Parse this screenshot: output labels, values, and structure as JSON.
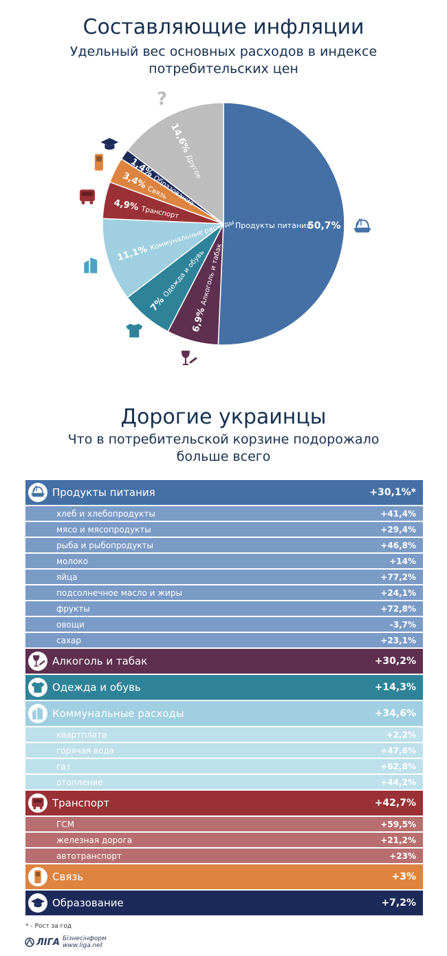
{
  "header": {
    "title": "Составляющие инфляции",
    "subtitle_line1": "Удельный вес основных расходов в индексе",
    "subtitle_line2": "потребительских цен"
  },
  "chart_data": {
    "type": "pie",
    "title": "Составляющие инфляции",
    "unit": "%",
    "slices": [
      {
        "label": "Продукты питания",
        "value": 50.7,
        "value_label": "50,7%",
        "color": "#4470a6"
      },
      {
        "label": "Алкоголь и табак",
        "value": 6.9,
        "value_label": "6,9%",
        "color": "#5e2f4f"
      },
      {
        "label": "Одежда и обувь",
        "value": 7,
        "value_label": "7%",
        "color": "#2e8399"
      },
      {
        "label": "Коммунальные расходы",
        "value": 11.1,
        "value_label": "11,1%",
        "color": "#9fcfe0"
      },
      {
        "label": "Транспорт",
        "value": 4.9,
        "value_label": "4,9%",
        "color": "#9a3136"
      },
      {
        "label": "Связь",
        "value": 3.4,
        "value_label": "3,4%",
        "color": "#dd8440"
      },
      {
        "label": "Образование",
        "value": 1.4,
        "value_label": "1,4%",
        "color": "#1c2a5a"
      },
      {
        "label": "Другое",
        "value": 14.6,
        "value_label": "14,6%",
        "color": "#bdbdbd"
      }
    ]
  },
  "section2": {
    "title": "Дорогие украинцы",
    "subtitle_line1": "Что в потребительской корзине подорожало",
    "subtitle_line2": "больше всего"
  },
  "table": {
    "rows": [
      {
        "kind": "main",
        "icon": "food-icon",
        "label": "Продукты питания",
        "value": "+30,1%*",
        "color": "#4470a6"
      },
      {
        "kind": "sub",
        "label": "хлеб и хлебопродукты",
        "value": "+41,4%",
        "color": "#7a9bc6"
      },
      {
        "kind": "sub",
        "label": "мясо и мясопродукты",
        "value": "+29,4%",
        "color": "#7a9bc6"
      },
      {
        "kind": "sub",
        "label": "рыба и рыбопродукты",
        "value": "+46,8%",
        "color": "#7a9bc6"
      },
      {
        "kind": "sub",
        "label": "молоко",
        "value": "+14%",
        "color": "#7a9bc6"
      },
      {
        "kind": "sub",
        "label": "яйца",
        "value": "+77,2%",
        "color": "#7a9bc6"
      },
      {
        "kind": "sub",
        "label": "подсолнечное масло и жиры",
        "value": "+24,1%",
        "color": "#7a9bc6"
      },
      {
        "kind": "sub",
        "label": "фрукты",
        "value": "+72,8%",
        "color": "#7a9bc6"
      },
      {
        "kind": "sub",
        "label": "овощи",
        "value": "-3,7%",
        "color": "#7a9bc6"
      },
      {
        "kind": "sub",
        "label": "сахар",
        "value": "+23,1%",
        "color": "#7a9bc6"
      },
      {
        "kind": "main",
        "icon": "wine-glass-icon",
        "label": "Алкоголь и табак",
        "value": "+30,2%",
        "color": "#5e2f4f"
      },
      {
        "kind": "main",
        "icon": "tshirt-icon",
        "label": "Одежда и обувь",
        "value": "+14,3%",
        "color": "#2e8399"
      },
      {
        "kind": "main",
        "icon": "building-icon",
        "label": "Коммунальные расходы",
        "value": "+34,6%",
        "color": "#9fcfe0"
      },
      {
        "kind": "sub",
        "label": "квартплата",
        "value": "+2,2%",
        "color": "#bde0eb"
      },
      {
        "kind": "sub",
        "label": "горячая вода",
        "value": "+47,6%",
        "color": "#bde0eb"
      },
      {
        "kind": "sub",
        "label": "газ",
        "value": "+62,8%",
        "color": "#bde0eb"
      },
      {
        "kind": "sub",
        "label": "отопление",
        "value": "+44,2%",
        "color": "#bde0eb"
      },
      {
        "kind": "main",
        "icon": "bus-icon",
        "label": "Транспорт",
        "value": "+42,7%",
        "color": "#9a3136"
      },
      {
        "kind": "sub",
        "label": "ГСМ",
        "value": "+59,5%",
        "color": "#b86e70"
      },
      {
        "kind": "sub",
        "label": "железная дорога",
        "value": "+21,2%",
        "color": "#b86e70"
      },
      {
        "kind": "sub",
        "label": "автотранспорт",
        "value": "+23%",
        "color": "#b86e70"
      },
      {
        "kind": "main",
        "icon": "phone-icon",
        "label": "Связь",
        "value": "+3%",
        "color": "#dd8440"
      },
      {
        "kind": "main",
        "icon": "graduation-cap-icon",
        "label": "Образование",
        "value": "+7,2%",
        "color": "#1c2a5a"
      }
    ]
  },
  "footnote": "* - Рост за год",
  "logo": {
    "brand": "ЛІГА",
    "line1": "Бізнесінформ",
    "line2": "www.liga.net"
  }
}
